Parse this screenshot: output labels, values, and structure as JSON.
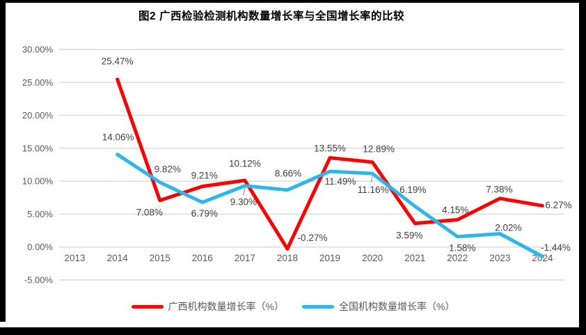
{
  "chart_data": {
    "type": "line",
    "title": "图2 广西检验检测机构数量增长率与全国增长率的比较",
    "categories": [
      "2013",
      "2014",
      "2015",
      "2016",
      "2017",
      "2018",
      "2019",
      "2020",
      "2021",
      "2022",
      "2023",
      "2024"
    ],
    "series": [
      {
        "name": "广西机构数量增长率（%）",
        "color": "#FE0000",
        "values": [
          null,
          25.47,
          7.08,
          9.21,
          10.12,
          -0.27,
          13.55,
          12.89,
          3.59,
          4.15,
          7.38,
          6.27
        ],
        "label_offsets": [
          [
            0,
            0
          ],
          [
            0,
            -26
          ],
          [
            -15,
            17
          ],
          [
            3,
            -16
          ],
          [
            0,
            -24
          ],
          [
            36,
            -16
          ],
          [
            0,
            -14
          ],
          [
            9,
            -19
          ],
          [
            -8,
            17
          ],
          [
            -3,
            -14
          ],
          [
            -1,
            -13
          ],
          [
            23,
            -1
          ]
        ]
      },
      {
        "name": "全国机构数量增长率（%）",
        "color": "#2EB6EA",
        "values": [
          null,
          14.06,
          9.82,
          6.79,
          9.3,
          8.66,
          11.49,
          11.16,
          6.19,
          1.58,
          2.02,
          -1.44
        ],
        "label_offsets": [
          [
            0,
            0
          ],
          [
            1,
            -25
          ],
          [
            11,
            -19
          ],
          [
            3,
            16
          ],
          [
            -2,
            23
          ],
          [
            1,
            -24
          ],
          [
            15,
            14
          ],
          [
            1,
            23
          ],
          [
            -3,
            -24
          ],
          [
            7,
            16
          ],
          [
            12,
            -9
          ],
          [
            19,
            -13
          ]
        ]
      }
    ],
    "leader_lines": [
      [
        1,
        4
      ],
      [
        1,
        7
      ]
    ],
    "y_axis": {
      "min": -5,
      "max": 30,
      "step": 5,
      "tick_decimals": 2,
      "tick_suffix": "%"
    },
    "grid": true,
    "legend_position": "bottom",
    "label_color": "#404040",
    "axis_text_color": "#595959",
    "grid_color": "#D9D9D9",
    "leader_color": "#A6A6A6"
  }
}
